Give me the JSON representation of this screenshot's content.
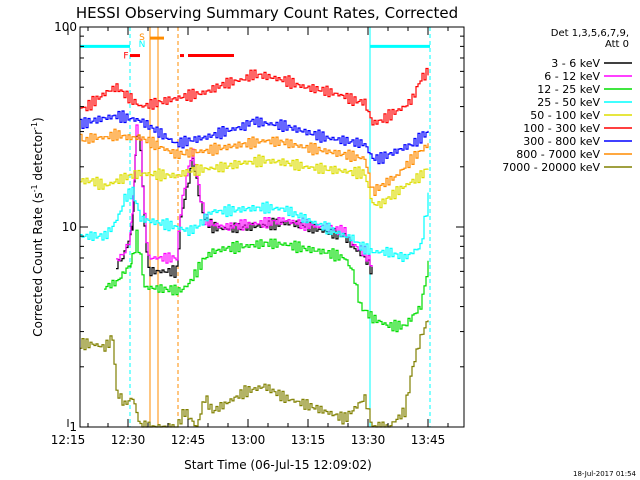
{
  "chart_data": {
    "type": "line",
    "title": "HESSI Observing Summary Count Rates, Corrected",
    "xlabel": "Start Time (06-Jul-15 12:09:02)",
    "ylabel": "Corrected Count Rate (s",
    "ylabel_sup1": "-1",
    "ylabel_mid": " detector",
    "ylabel_sup2": "-1",
    "ylabel_end": ")",
    "footer": "18-Jul-2017 01:54",
    "x_range_min": [
      9.0,
      105.0
    ],
    "y_range": [
      1,
      100
    ],
    "y_scale": "log",
    "x_ticks": [
      {
        "label": "12:15",
        "min": 6
      },
      {
        "label": "12:30",
        "min": 21
      },
      {
        "label": "12:45",
        "min": 36
      },
      {
        "label": "13:00",
        "min": 51
      },
      {
        "label": "13:15",
        "min": 66
      },
      {
        "label": "13:30",
        "min": 81
      },
      {
        "label": "13:45",
        "min": 96
      }
    ],
    "y_ticks": [
      {
        "label": "1",
        "v": 1
      },
      {
        "label": "10",
        "v": 10
      },
      {
        "label": "100",
        "v": 100
      }
    ],
    "legend_header": [
      "Det 1,3,5,6,7,9,",
      "Att 0"
    ],
    "series": [
      {
        "name": "3 - 6 keV",
        "color": "#000000",
        "values": [
          [
            18,
            6.5
          ],
          [
            19.5,
            7
          ],
          [
            20.5,
            8
          ],
          [
            21.5,
            9
          ],
          [
            22,
            10
          ],
          [
            22.5,
            16
          ],
          [
            23,
            30
          ],
          [
            24,
            25
          ],
          [
            25,
            10
          ],
          [
            26,
            6
          ],
          [
            33,
            6
          ],
          [
            34,
            11
          ],
          [
            35,
            14
          ],
          [
            36,
            17
          ],
          [
            37,
            22
          ],
          [
            38,
            17
          ],
          [
            39,
            13
          ],
          [
            40,
            11
          ],
          [
            42,
            10
          ],
          [
            45,
            9.8
          ],
          [
            50,
            10
          ],
          [
            55,
            10.2
          ],
          [
            60,
            10.5
          ],
          [
            65,
            10.2
          ],
          [
            70,
            9.5
          ],
          [
            75,
            9
          ],
          [
            77,
            8
          ],
          [
            80,
            7
          ],
          [
            82,
            6
          ]
        ]
      },
      {
        "name": "6 - 12 keV",
        "color": "#ff00ff",
        "values": [
          [
            18,
            6.8
          ],
          [
            20,
            7.5
          ],
          [
            21.5,
            9
          ],
          [
            22,
            12
          ],
          [
            22.5,
            17
          ],
          [
            23,
            32
          ],
          [
            24,
            26
          ],
          [
            25,
            11
          ],
          [
            26,
            7
          ],
          [
            33,
            7
          ],
          [
            34,
            12
          ],
          [
            35,
            16
          ],
          [
            36,
            20
          ],
          [
            37,
            24
          ],
          [
            38,
            18
          ],
          [
            39,
            14
          ],
          [
            40,
            11
          ],
          [
            42,
            10.3
          ],
          [
            45,
            10
          ],
          [
            50,
            10.3
          ],
          [
            55,
            10.5
          ],
          [
            60,
            10.8
          ],
          [
            65,
            10.3
          ],
          [
            70,
            10
          ],
          [
            75,
            9.5
          ],
          [
            77,
            8.2
          ],
          [
            80,
            7.5
          ],
          [
            82,
            6.3
          ]
        ]
      },
      {
        "name": "12 - 25 keV",
        "color": "#00dd00",
        "values": [
          [
            15,
            5
          ],
          [
            18,
            5.3
          ],
          [
            20,
            6
          ],
          [
            21.5,
            6.5
          ],
          [
            22,
            7
          ],
          [
            23,
            9
          ],
          [
            24,
            7
          ],
          [
            25,
            5
          ],
          [
            34,
            4.8
          ],
          [
            36,
            5.2
          ],
          [
            38,
            6
          ],
          [
            40,
            7
          ],
          [
            42,
            7.5
          ],
          [
            45,
            7.8
          ],
          [
            50,
            8
          ],
          [
            55,
            8.3
          ],
          [
            60,
            8.2
          ],
          [
            65,
            7.8
          ],
          [
            70,
            7.5
          ],
          [
            75,
            7
          ],
          [
            77,
            6
          ],
          [
            79,
            4
          ],
          [
            82,
            3.5
          ],
          [
            86,
            3.2
          ],
          [
            90,
            3.2
          ],
          [
            94,
            4
          ],
          [
            96,
            6.5
          ]
        ]
      },
      {
        "name": "25 - 50 keV",
        "color": "#00ffff",
        "values": [
          [
            9,
            9
          ],
          [
            12,
            9
          ],
          [
            15,
            9
          ],
          [
            17,
            10
          ],
          [
            19,
            12
          ],
          [
            20,
            14
          ],
          [
            22,
            15
          ],
          [
            23,
            13
          ],
          [
            24,
            11
          ],
          [
            33,
            10
          ],
          [
            36,
            9.5
          ],
          [
            38,
            10
          ],
          [
            40,
            11
          ],
          [
            42,
            12
          ],
          [
            45,
            12
          ],
          [
            50,
            12.3
          ],
          [
            55,
            12.5
          ],
          [
            60,
            12.3
          ],
          [
            65,
            11
          ],
          [
            70,
            10
          ],
          [
            75,
            9
          ],
          [
            77,
            8.8
          ],
          [
            79,
            8
          ],
          [
            82,
            7.5
          ],
          [
            86,
            7.5
          ],
          [
            90,
            7
          ],
          [
            94,
            8
          ],
          [
            96,
            14
          ]
        ]
      },
      {
        "name": "50 - 100 keV",
        "color": "#dddd00",
        "values": [
          [
            9,
            17
          ],
          [
            12,
            17
          ],
          [
            15,
            16
          ],
          [
            18,
            17
          ],
          [
            21,
            18
          ],
          [
            24,
            18.5
          ],
          [
            33,
            18
          ],
          [
            36,
            19
          ],
          [
            40,
            19.5
          ],
          [
            45,
            20
          ],
          [
            50,
            21
          ],
          [
            55,
            21.5
          ],
          [
            60,
            21
          ],
          [
            65,
            20
          ],
          [
            70,
            19.5
          ],
          [
            75,
            19
          ],
          [
            80,
            18.5
          ],
          [
            82,
            13
          ],
          [
            84,
            13
          ],
          [
            86,
            14
          ],
          [
            88,
            15
          ],
          [
            90,
            16
          ],
          [
            92,
            17
          ],
          [
            94,
            18
          ],
          [
            96,
            20
          ]
        ]
      },
      {
        "name": "100 - 300 keV",
        "color": "#ff0000",
        "values": [
          [
            9,
            40
          ],
          [
            10,
            39
          ],
          [
            12,
            42
          ],
          [
            14,
            45
          ],
          [
            16,
            48
          ],
          [
            18,
            50
          ],
          [
            20,
            46
          ],
          [
            22,
            43
          ],
          [
            24,
            40
          ],
          [
            33,
            44
          ],
          [
            35,
            45
          ],
          [
            40,
            47
          ],
          [
            45,
            52
          ],
          [
            50,
            55
          ],
          [
            52,
            58
          ],
          [
            55,
            57
          ],
          [
            60,
            54
          ],
          [
            65,
            50
          ],
          [
            70,
            48
          ],
          [
            75,
            45
          ],
          [
            77,
            43
          ],
          [
            80,
            42
          ],
          [
            82,
            33
          ],
          [
            84,
            34
          ],
          [
            86,
            36
          ],
          [
            88,
            38
          ],
          [
            90,
            40
          ],
          [
            92,
            44
          ],
          [
            94,
            55
          ],
          [
            96,
            60
          ]
        ]
      },
      {
        "name": "300 - 800 keV",
        "color": "#0000ff",
        "values": [
          [
            9,
            33
          ],
          [
            10,
            33
          ],
          [
            12,
            34
          ],
          [
            15,
            35
          ],
          [
            18,
            36
          ],
          [
            21,
            35
          ],
          [
            24,
            34
          ],
          [
            33,
            26
          ],
          [
            36,
            27
          ],
          [
            40,
            28
          ],
          [
            45,
            30
          ],
          [
            50,
            32
          ],
          [
            52,
            34
          ],
          [
            55,
            33
          ],
          [
            60,
            32
          ],
          [
            65,
            30
          ],
          [
            70,
            28
          ],
          [
            75,
            27
          ],
          [
            80,
            26
          ],
          [
            82,
            22
          ],
          [
            84,
            22
          ],
          [
            86,
            23
          ],
          [
            88,
            24
          ],
          [
            90,
            25
          ],
          [
            92,
            26
          ],
          [
            94,
            28
          ],
          [
            96,
            30
          ]
        ]
      },
      {
        "name": "800 - 7000 keV",
        "color": "#ff8c00",
        "values": [
          [
            9,
            28
          ],
          [
            10,
            27
          ],
          [
            12,
            28
          ],
          [
            15,
            28
          ],
          [
            18,
            29
          ],
          [
            21,
            28
          ],
          [
            24,
            28
          ],
          [
            33,
            23
          ],
          [
            36,
            23.5
          ],
          [
            40,
            24
          ],
          [
            45,
            25
          ],
          [
            50,
            26
          ],
          [
            55,
            27
          ],
          [
            60,
            26.5
          ],
          [
            65,
            25
          ],
          [
            70,
            24
          ],
          [
            75,
            23
          ],
          [
            80,
            22
          ],
          [
            82,
            15
          ],
          [
            84,
            16
          ],
          [
            86,
            17
          ],
          [
            88,
            18
          ],
          [
            90,
            20
          ],
          [
            92,
            22
          ],
          [
            94,
            24
          ],
          [
            96,
            26
          ]
        ]
      },
      {
        "name": "7000 - 20000 keV",
        "color": "#808000",
        "values": [
          [
            9,
            2.6
          ],
          [
            12,
            2.6
          ],
          [
            15,
            2.5
          ],
          [
            17,
            2.8
          ],
          [
            18,
            1.5
          ],
          [
            20,
            1.3
          ],
          [
            22,
            1.4
          ],
          [
            24,
            1.0
          ],
          [
            33,
            1.0
          ],
          [
            35,
            1.2
          ],
          [
            38,
            1.0
          ],
          [
            40,
            1.4
          ],
          [
            42,
            1.2
          ],
          [
            45,
            1.3
          ],
          [
            50,
            1.5
          ],
          [
            55,
            1.6
          ],
          [
            60,
            1.4
          ],
          [
            65,
            1.3
          ],
          [
            70,
            1.2
          ],
          [
            75,
            1.1
          ],
          [
            80,
            1.4
          ],
          [
            82,
            1.0
          ],
          [
            86,
            1.0
          ],
          [
            90,
            1.2
          ],
          [
            92,
            2.0
          ],
          [
            94,
            2.8
          ],
          [
            96,
            3.5
          ]
        ]
      }
    ],
    "background_lines": [
      {
        "color": "#00ffff",
        "y": 80,
        "x": [
          9,
          21.5
        ]
      },
      {
        "color": "#00ffff",
        "y": 80,
        "x": [
          81.5,
          96.5
        ]
      }
    ],
    "vertical_lines": [
      {
        "color": "#00ffff",
        "style": "dashed",
        "x": 21.5
      },
      {
        "color": "#00ffff",
        "style": "solid",
        "x": 81.5
      },
      {
        "color": "#00ffff",
        "style": "dashed",
        "x": 96.5
      },
      {
        "color": "#ff8c00",
        "style": "solid",
        "x": 26.5
      },
      {
        "color": "#ff8c00",
        "style": "solid",
        "x": 28.5
      },
      {
        "color": "#ff8c00",
        "style": "dashed",
        "x": 33.5
      }
    ],
    "flags": [
      {
        "text": "F",
        "color": "#ff0000",
        "x": 20.5,
        "y": 72
      },
      {
        "text": "S",
        "color": "#ff8c00",
        "x": 24.5,
        "y": 89
      },
      {
        "text": "N",
        "color": "#00ffff",
        "x": 24.5,
        "y": 82
      }
    ],
    "flag_bars": [
      {
        "color": "#ff0000",
        "y": 72,
        "x": [
          21.5,
          24.0
        ]
      },
      {
        "color": "#ff0000",
        "y": 72,
        "x": [
          34.0,
          35.0
        ]
      },
      {
        "color": "#ff0000",
        "y": 72,
        "x": [
          36.0,
          47.5
        ]
      },
      {
        "color": "#ff8c00",
        "y": 88,
        "x": [
          26.5,
          30.0
        ]
      }
    ],
    "colors": {
      "axis": "#000000",
      "background": "#ffffff"
    }
  }
}
